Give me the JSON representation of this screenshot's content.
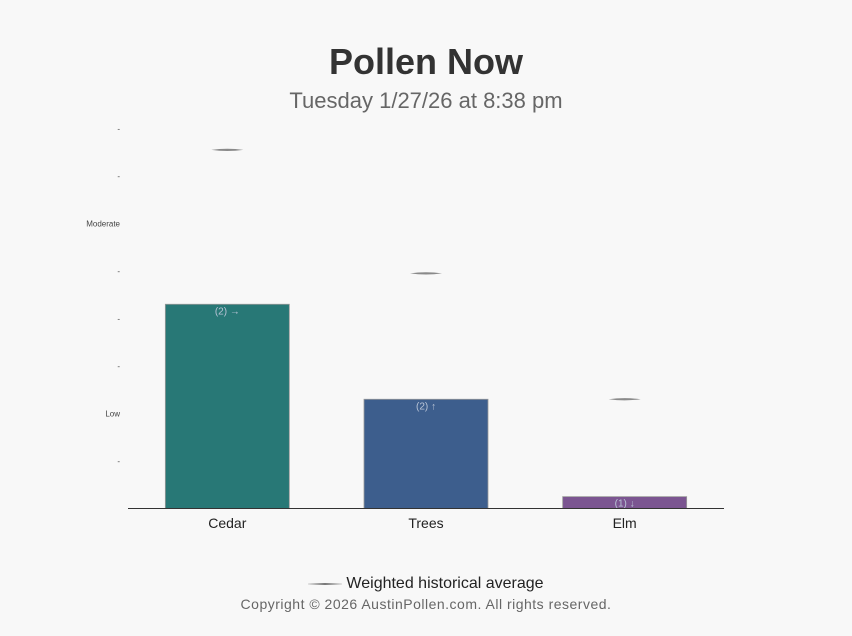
{
  "header": {
    "title": "Pollen Now",
    "subtitle": "Tuesday 1/27/26 at 8:38 pm"
  },
  "legend": {
    "label": "Weighted historical average"
  },
  "footer": {
    "copyright": "Copyright © 2026 AustinPollen.com.  All rights reserved."
  },
  "chart_data": {
    "type": "bar",
    "categories": [
      "Cedar",
      "Trees",
      "Elm"
    ],
    "values": [
      4.3,
      2.3,
      0.25
    ],
    "bar_labels": [
      "(2) →",
      "(2) ↑",
      "(1) ↓"
    ],
    "bar_colors": [
      "#287876",
      "#3d5e8d",
      "#7b5591"
    ],
    "historical_average": [
      7.55,
      4.95,
      2.3
    ],
    "ylim": [
      0,
      8
    ],
    "y_ticks": [
      {
        "value": 1,
        "label": "-"
      },
      {
        "value": 2,
        "label": "Low"
      },
      {
        "value": 3,
        "label": "-"
      },
      {
        "value": 4,
        "label": "-"
      },
      {
        "value": 5,
        "label": "-"
      },
      {
        "value": 6,
        "label": "Moderate"
      },
      {
        "value": 7,
        "label": "-"
      },
      {
        "value": 8,
        "label": "-"
      }
    ],
    "grid": false,
    "legend_position": "bottom"
  }
}
